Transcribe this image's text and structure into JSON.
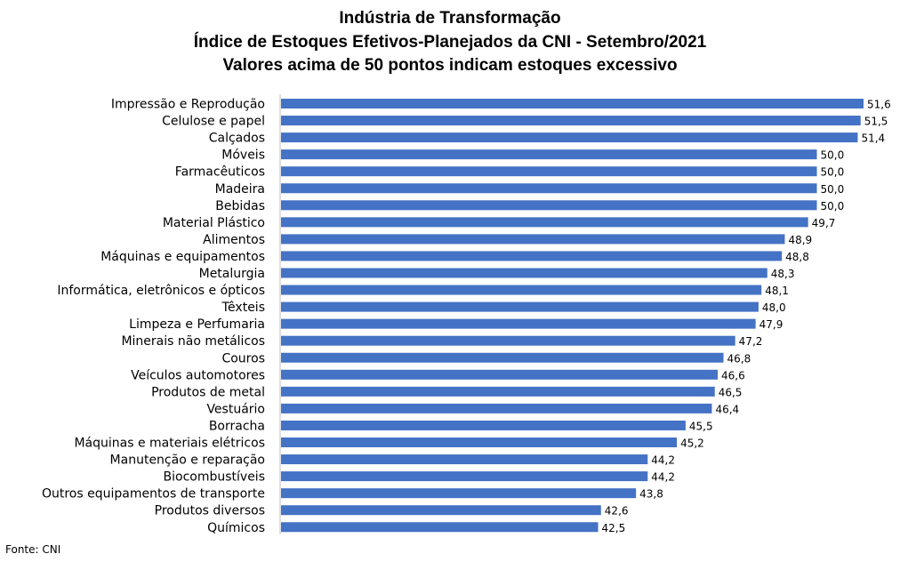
{
  "title_lines": [
    "Indústria de Transformação",
    "Índice de Estoques Efetivos-Planejados da CNI - Setembro/2021",
    "Valores acima de 50 pontos indicam estoques excessivo"
  ],
  "source": "Fonte: CNI",
  "colors": {
    "bar": "#4472C4"
  },
  "chart_data": {
    "type": "bar",
    "orientation": "horizontal",
    "title": "Indústria de Transformação / Índice de Estoques Efetivos-Planejados da CNI - Setembro/2021 / Valores acima de 50 pontos indicam estoques excessivo",
    "xlabel": "",
    "ylabel": "",
    "grid": false,
    "categories": [
      "Impressão e Reprodução",
      "Celulose e papel",
      "Calçados",
      "Móveis",
      "Farmacêuticos",
      "Madeira",
      "Bebidas",
      "Material Plástico",
      "Alimentos",
      "Máquinas e equipamentos",
      "Metalurgia",
      "Informática, eletrônicos e ópticos",
      "Têxteis",
      "Limpeza e Perfumaria",
      "Minerais não metálicos",
      "Couros",
      "Veículos automotores",
      "Produtos de metal",
      "Vestuário",
      "Borracha",
      "Máquinas e materiais elétricos",
      "Manutenção e reparação",
      "Biocombustíveis",
      "Outros equipamentos de transporte",
      "Produtos diversos",
      "Químicos"
    ],
    "values": [
      51.6,
      51.5,
      51.4,
      50.0,
      50.0,
      50.0,
      50.0,
      49.7,
      48.9,
      48.8,
      48.3,
      48.1,
      48.0,
      47.9,
      47.2,
      46.8,
      46.6,
      46.5,
      46.4,
      45.5,
      45.2,
      44.2,
      44.2,
      43.8,
      42.6,
      42.5
    ],
    "value_labels": [
      "51,6",
      "51,5",
      "51,4",
      "50,0",
      "50,0",
      "50,0",
      "50,0",
      "49,7",
      "48,9",
      "48,8",
      "48,3",
      "48,1",
      "48,0",
      "47,9",
      "47,2",
      "46,8",
      "46,6",
      "46,5",
      "46,4",
      "45,5",
      "45,2",
      "44,2",
      "44,2",
      "43,8",
      "42,6",
      "42,5"
    ],
    "xlim": [
      31.6,
      51.6
    ]
  }
}
